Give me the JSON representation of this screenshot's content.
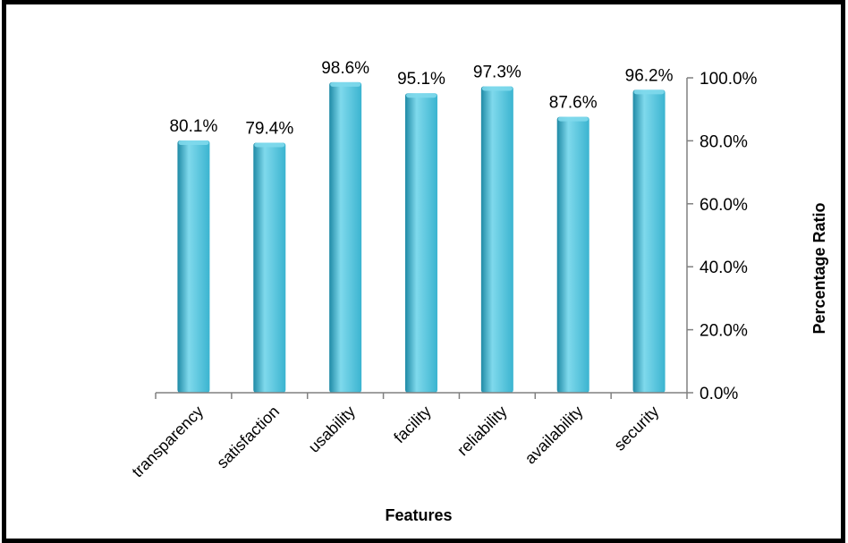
{
  "chart_data": {
    "type": "bar",
    "categories": [
      "transparency",
      "satisfaction",
      "usability",
      "facility",
      "reliability",
      "availability",
      "security"
    ],
    "values": [
      80.1,
      79.4,
      98.6,
      95.1,
      97.3,
      87.6,
      96.2
    ],
    "data_labels": [
      "80.1%",
      "79.4%",
      "98.6%",
      "95.1%",
      "97.3%",
      "87.6%",
      "96.2%"
    ],
    "xlabel": "Features",
    "ylabel": "Percentage Ratio",
    "ylim": [
      0,
      100
    ],
    "yticks": [
      0,
      20,
      40,
      60,
      80,
      100
    ],
    "ytick_labels": [
      "0.0%",
      "20.0%",
      "40.0%",
      "60.0%",
      "80.0%",
      "100.0%"
    ],
    "y_axis_side": "right",
    "grid": false,
    "legend": "none",
    "bar_color": "#3bb4d0",
    "bar_highlight": "#7fd9ec",
    "bar_shade": "#1f8aa6"
  }
}
